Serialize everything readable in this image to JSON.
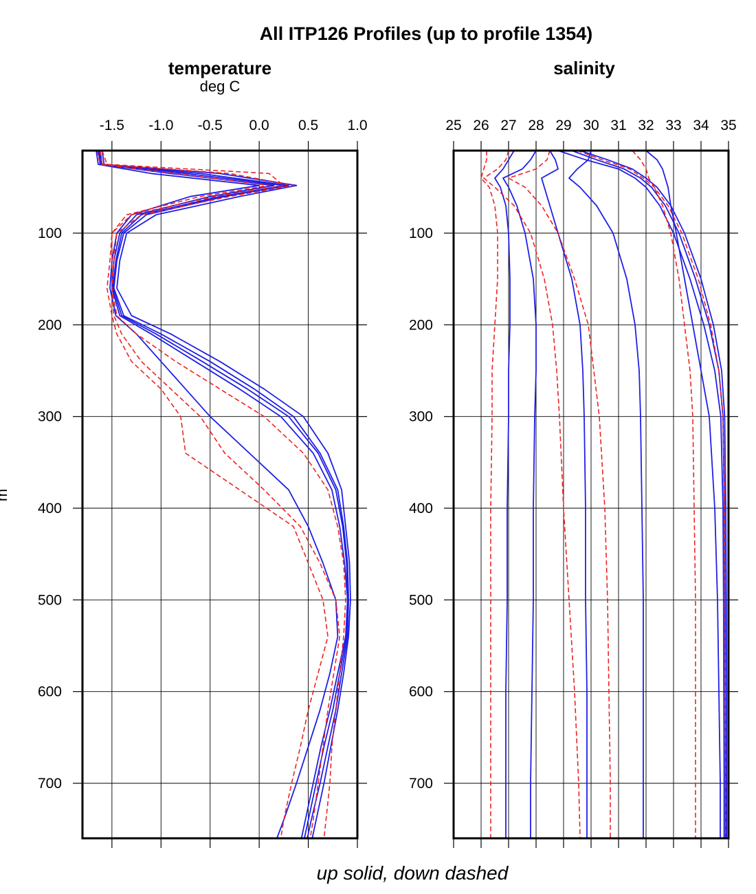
{
  "figure": {
    "title": "All ITP126 Profiles (up to profile 1354)",
    "caption": "up solid, down dashed",
    "left_axis_label": "m",
    "colors": {
      "up": "#1f1fe6",
      "down": "#ee2222",
      "axis": "#000000",
      "grid": "#000000"
    }
  },
  "chart_data": [
    {
      "type": "line",
      "title": "temperature",
      "subtitle": "deg C",
      "xlim": [
        -1.8,
        1.0
      ],
      "ylim": [
        760,
        10
      ],
      "y_reversed": true,
      "grid": true,
      "x_ticks": [
        -1.5,
        -1.0,
        -0.5,
        0.0,
        0.5,
        1.0
      ],
      "x_tick_labels": [
        "-1.5",
        "-1.0",
        "-0.5",
        "0.0",
        "0.5",
        "1.0"
      ],
      "y_ticks": [
        100,
        200,
        300,
        400,
        500,
        600,
        700
      ],
      "y_tick_labels": [
        "100",
        "200",
        "300",
        "400",
        "500",
        "600",
        "700"
      ],
      "series": [
        {
          "style": "solid",
          "color": "#1f1fe6",
          "depth": [
            10,
            25,
            35,
            48,
            60,
            80,
            100,
            130,
            160,
            190,
            210,
            240,
            270,
            300,
            340,
            380,
            420,
            460,
            500,
            540,
            580,
            620,
            660,
            700,
            740,
            760
          ],
          "values": [
            -1.62,
            -1.6,
            -0.6,
            0.3,
            -0.35,
            -1.15,
            -1.38,
            -1.45,
            -1.48,
            -1.38,
            -1.0,
            -0.5,
            -0.05,
            0.35,
            0.62,
            0.8,
            0.86,
            0.9,
            0.91,
            0.9,
            0.84,
            0.78,
            0.7,
            0.62,
            0.53,
            0.49
          ]
        },
        {
          "style": "solid",
          "color": "#1f1fe6",
          "depth": [
            10,
            25,
            35,
            48,
            60,
            80,
            100,
            130,
            160,
            190,
            210,
            240,
            270,
            300,
            340,
            380,
            420,
            460,
            500,
            540,
            580,
            620,
            660,
            700,
            740,
            760
          ],
          "values": [
            -1.64,
            -1.62,
            -0.9,
            0.15,
            -0.5,
            -1.25,
            -1.42,
            -1.48,
            -1.5,
            -1.42,
            -1.1,
            -0.65,
            -0.2,
            0.22,
            0.55,
            0.74,
            0.82,
            0.87,
            0.9,
            0.88,
            0.8,
            0.72,
            0.63,
            0.55,
            0.47,
            0.43
          ]
        },
        {
          "style": "solid",
          "color": "#1f1fe6",
          "depth": [
            10,
            25,
            35,
            48,
            60,
            80,
            100,
            130,
            160,
            190,
            210,
            240,
            270,
            300,
            340,
            380,
            420,
            460,
            500,
            540,
            580,
            620,
            660,
            700,
            740,
            760
          ],
          "values": [
            -1.6,
            -1.58,
            -0.4,
            0.38,
            -0.2,
            -1.05,
            -1.35,
            -1.42,
            -1.45,
            -1.3,
            -0.9,
            -0.4,
            0.05,
            0.45,
            0.7,
            0.84,
            0.88,
            0.92,
            0.93,
            0.91,
            0.86,
            0.8,
            0.73,
            0.66,
            0.58,
            0.54
          ]
        },
        {
          "style": "solid",
          "color": "#1f1fe6",
          "depth": [
            10,
            25,
            35,
            48,
            60,
            80,
            100,
            130,
            160,
            190,
            210,
            240,
            270,
            300,
            340,
            380,
            420,
            460,
            500,
            540,
            580,
            620,
            660,
            700,
            740,
            760
          ],
          "values": [
            -1.66,
            -1.64,
            -1.1,
            0.0,
            -0.7,
            -1.3,
            -1.45,
            -1.5,
            -1.52,
            -1.46,
            -1.25,
            -1.0,
            -0.75,
            -0.5,
            -0.1,
            0.3,
            0.5,
            0.65,
            0.78,
            0.8,
            0.72,
            0.62,
            0.5,
            0.38,
            0.25,
            0.18
          ]
        },
        {
          "style": "solid",
          "color": "#1f1fe6",
          "depth": [
            10,
            25,
            35,
            48,
            60,
            80,
            100,
            130,
            160,
            190,
            210,
            240,
            270,
            300,
            340,
            380,
            420,
            460,
            500,
            540,
            580,
            620,
            660,
            700,
            740,
            760
          ],
          "values": [
            -1.63,
            -1.61,
            -0.75,
            0.25,
            -0.4,
            -1.2,
            -1.4,
            -1.46,
            -1.49,
            -1.4,
            -1.05,
            -0.58,
            -0.12,
            0.3,
            0.6,
            0.78,
            0.85,
            0.89,
            0.9,
            0.89,
            0.82,
            0.75,
            0.66,
            0.58,
            0.5,
            0.46
          ]
        },
        {
          "style": "dashed",
          "color": "#ee2222",
          "depth": [
            10,
            25,
            35,
            48,
            60,
            80,
            100,
            130,
            160,
            190,
            210,
            240,
            270,
            300,
            340,
            380,
            420,
            460,
            500,
            540,
            580,
            620,
            660,
            700,
            740,
            760
          ],
          "values": [
            -1.6,
            -1.55,
            0.1,
            0.25,
            -0.45,
            -1.3,
            -1.5,
            -1.5,
            -1.5,
            -1.48,
            -1.4,
            -1.2,
            -0.9,
            -0.6,
            -0.35,
            0.05,
            0.42,
            0.62,
            0.78,
            0.82,
            0.76,
            0.7,
            0.65,
            0.6,
            0.55,
            0.52
          ]
        },
        {
          "style": "dashed",
          "color": "#ee2222",
          "depth": [
            10,
            25,
            35,
            48,
            60,
            80,
            100,
            130,
            160,
            190,
            210,
            240,
            270,
            300,
            340,
            380,
            420,
            460,
            500,
            540,
            580,
            620,
            660,
            700,
            740,
            760
          ],
          "values": [
            -1.62,
            -1.6,
            -0.3,
            0.35,
            -0.3,
            -1.2,
            -1.45,
            -1.48,
            -1.5,
            -1.45,
            -1.25,
            -0.85,
            -0.4,
            0.05,
            0.45,
            0.7,
            0.8,
            0.86,
            0.88,
            0.86,
            0.82,
            0.78,
            0.74,
            0.72,
            0.68,
            0.66
          ]
        },
        {
          "style": "dashed",
          "color": "#ee2222",
          "depth": [
            10,
            25,
            35,
            48,
            60,
            80,
            100,
            130,
            160,
            190,
            210,
            240,
            270,
            300,
            340,
            380,
            420,
            460,
            500,
            540,
            580,
            620,
            660,
            700,
            740,
            760
          ],
          "values": [
            -1.65,
            -1.62,
            -0.85,
            0.1,
            -0.6,
            -1.35,
            -1.5,
            -1.52,
            -1.55,
            -1.5,
            -1.45,
            -1.3,
            -1.0,
            -0.8,
            -0.75,
            -0.2,
            0.35,
            0.5,
            0.65,
            0.7,
            0.6,
            0.5,
            0.42,
            0.33,
            0.25,
            0.22
          ]
        }
      ]
    },
    {
      "type": "line",
      "title": "salinity",
      "subtitle": "",
      "xlim": [
        25,
        35
      ],
      "ylim": [
        760,
        10
      ],
      "y_reversed": true,
      "grid": true,
      "x_ticks": [
        25,
        26,
        27,
        28,
        29,
        30,
        31,
        32,
        33,
        34,
        35
      ],
      "x_tick_labels": [
        "25",
        "26",
        "27",
        "28",
        "29",
        "30",
        "31",
        "32",
        "33",
        "34",
        "35"
      ],
      "y_ticks": [
        100,
        200,
        300,
        400,
        500,
        600,
        700
      ],
      "y_tick_labels": [
        "100",
        "200",
        "300",
        "400",
        "500",
        "600",
        "700"
      ],
      "series": [
        {
          "style": "solid",
          "color": "#1f1fe6",
          "depth": [
            10,
            20,
            30,
            40,
            50,
            70,
            100,
            150,
            200,
            250,
            300,
            400,
            500,
            600,
            700,
            760
          ],
          "values": [
            29.3,
            30.2,
            31.2,
            31.8,
            32.2,
            32.7,
            33.2,
            33.8,
            34.3,
            34.65,
            34.8,
            34.85,
            34.87,
            34.88,
            34.89,
            34.89
          ]
        },
        {
          "style": "solid",
          "color": "#1f1fe6",
          "depth": [
            10,
            20,
            30,
            40,
            50,
            70,
            100,
            150,
            200,
            250,
            300,
            400,
            500,
            600,
            700,
            760
          ],
          "values": [
            28.8,
            29.8,
            31.0,
            31.6,
            32.0,
            32.5,
            33.0,
            33.6,
            34.1,
            34.5,
            34.72,
            34.8,
            34.82,
            34.83,
            34.84,
            34.84
          ]
        },
        {
          "style": "solid",
          "color": "#1f1fe6",
          "depth": [
            10,
            20,
            30,
            40,
            50,
            70,
            100,
            150,
            200,
            250,
            300,
            400,
            500,
            600,
            700,
            760
          ],
          "values": [
            29.6,
            30.6,
            31.5,
            32.0,
            32.4,
            32.9,
            33.4,
            34.0,
            34.45,
            34.75,
            34.86,
            34.9,
            34.92,
            34.93,
            34.93,
            34.93
          ]
        },
        {
          "style": "solid",
          "color": "#1f1fe6",
          "depth": [
            10,
            20,
            30,
            40,
            50,
            70,
            100,
            150,
            200,
            250,
            300,
            400,
            500,
            600,
            700,
            760
          ],
          "values": [
            32.0,
            32.4,
            32.6,
            32.7,
            32.8,
            32.9,
            33.1,
            33.4,
            33.7,
            34.0,
            34.3,
            34.5,
            34.6,
            34.65,
            34.7,
            34.7
          ]
        },
        {
          "style": "solid",
          "color": "#1f1fe6",
          "depth": [
            10,
            20,
            30,
            40,
            50,
            70,
            100,
            150,
            200,
            250,
            300,
            400,
            500,
            600,
            700,
            760
          ],
          "values": [
            28.5,
            28.7,
            28.8,
            28.2,
            28.3,
            28.5,
            28.8,
            29.3,
            29.6,
            29.7,
            29.75,
            29.8,
            29.8,
            29.85,
            29.85,
            29.85
          ]
        },
        {
          "style": "solid",
          "color": "#1f1fe6",
          "depth": [
            10,
            20,
            30,
            40,
            50,
            70,
            100,
            150,
            200,
            250,
            300,
            400,
            500,
            600,
            700,
            760
          ],
          "values": [
            28.0,
            27.8,
            27.5,
            26.8,
            27.0,
            27.3,
            27.6,
            27.9,
            28.0,
            28.0,
            27.95,
            27.9,
            27.9,
            27.85,
            27.8,
            27.8
          ]
        },
        {
          "style": "solid",
          "color": "#1f1fe6",
          "depth": [
            10,
            20,
            30,
            40,
            50,
            70,
            100,
            150,
            200,
            250,
            300,
            400,
            500,
            600,
            700,
            760
          ],
          "values": [
            30.0,
            29.9,
            29.5,
            29.2,
            29.6,
            30.2,
            30.8,
            31.3,
            31.6,
            31.75,
            31.8,
            31.85,
            31.9,
            31.9,
            31.9,
            31.9
          ]
        },
        {
          "style": "solid",
          "color": "#1f1fe6",
          "depth": [
            10,
            20,
            30,
            40,
            50,
            70,
            100,
            150,
            200,
            250,
            300,
            400,
            500,
            600,
            700,
            760
          ],
          "values": [
            27.2,
            27.0,
            26.8,
            26.5,
            26.7,
            26.9,
            27.0,
            27.05,
            27.05,
            27.0,
            27.0,
            26.95,
            26.95,
            26.9,
            26.9,
            26.9
          ]
        },
        {
          "style": "dashed",
          "color": "#ee2222",
          "depth": [
            10,
            20,
            30,
            40,
            50,
            70,
            100,
            150,
            200,
            250,
            300,
            400,
            500,
            600,
            700,
            760
          ],
          "values": [
            26.2,
            26.2,
            26.1,
            26.0,
            26.3,
            26.5,
            26.6,
            26.6,
            26.5,
            26.4,
            26.4,
            26.35,
            26.35,
            26.35,
            26.35,
            26.35
          ]
        },
        {
          "style": "dashed",
          "color": "#ee2222",
          "depth": [
            10,
            20,
            30,
            40,
            50,
            70,
            100,
            150,
            200,
            250,
            300,
            400,
            500,
            600,
            700,
            760
          ],
          "values": [
            28.5,
            28.4,
            28.0,
            27.0,
            27.6,
            28.2,
            28.8,
            29.4,
            29.9,
            30.1,
            30.3,
            30.5,
            30.6,
            30.65,
            30.7,
            30.7
          ]
        },
        {
          "style": "dashed",
          "color": "#ee2222",
          "depth": [
            10,
            20,
            30,
            40,
            50,
            70,
            100,
            150,
            200,
            250,
            300,
            400,
            500,
            600,
            700,
            760
          ],
          "values": [
            29.5,
            30.4,
            31.4,
            31.9,
            32.3,
            32.8,
            33.3,
            33.9,
            34.35,
            34.65,
            34.8,
            34.86,
            34.88,
            34.88,
            34.89,
            34.89
          ]
        },
        {
          "style": "dashed",
          "color": "#ee2222",
          "depth": [
            10,
            20,
            30,
            40,
            50,
            70,
            100,
            150,
            200,
            250,
            300,
            400,
            500,
            600,
            700,
            760
          ],
          "values": [
            27.0,
            26.9,
            26.6,
            26.1,
            26.5,
            27.2,
            27.8,
            28.3,
            28.6,
            28.75,
            28.85,
            29.0,
            29.2,
            29.4,
            29.55,
            29.6
          ]
        },
        {
          "style": "dashed",
          "color": "#ee2222",
          "depth": [
            10,
            20,
            30,
            40,
            50,
            70,
            100,
            150,
            200,
            250,
            300,
            400,
            500,
            600,
            700,
            760
          ],
          "values": [
            31.5,
            31.8,
            32.0,
            32.1,
            32.3,
            32.6,
            32.9,
            33.2,
            33.4,
            33.6,
            33.7,
            33.75,
            33.8,
            33.8,
            33.8,
            33.8
          ]
        }
      ]
    }
  ]
}
